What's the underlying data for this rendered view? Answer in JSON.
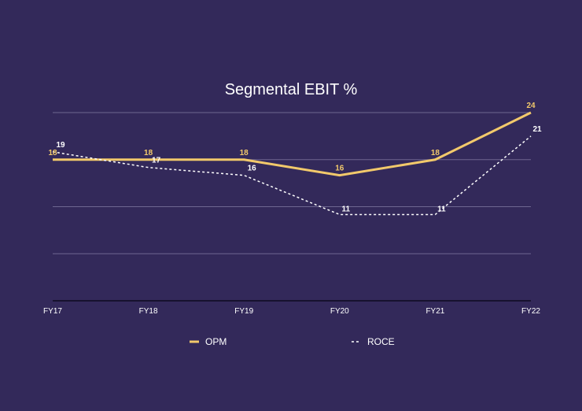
{
  "chart_data": {
    "type": "line",
    "title": "Segmental EBIT %",
    "categories": [
      "FY17",
      "FY18",
      "FY19",
      "FY20",
      "FY21",
      "FY22"
    ],
    "series": [
      {
        "name": "OPM",
        "values": [
          18,
          18,
          18,
          16,
          18,
          24
        ],
        "color": "#f2c96b",
        "style": "solid"
      },
      {
        "name": "ROCE",
        "values": [
          19,
          17,
          16,
          11,
          11,
          21
        ],
        "color": "#ffffff",
        "style": "dashed"
      }
    ],
    "ylim": [
      0,
      24
    ],
    "grid": true,
    "legend_position": "bottom",
    "xlabel": "",
    "ylabel": ""
  }
}
